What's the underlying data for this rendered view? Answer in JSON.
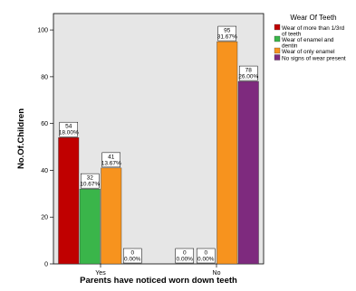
{
  "chart_data": {
    "type": "bar",
    "xlabel": "Parents have noticed worn down teeth",
    "ylabel": "No.Of.Children",
    "ylim": [
      0,
      100
    ],
    "yticks": [
      0,
      20,
      40,
      60,
      80,
      100
    ],
    "categories": [
      "Yes",
      "No"
    ],
    "grid": false,
    "legend_position": "right",
    "legend_title": "Wear Of Teeth",
    "series": [
      {
        "name": "Wear of more than 1/3rd of teeth",
        "color": "#c00000",
        "values": [
          54,
          0
        ],
        "labels": [
          "18.00%",
          "0.00%"
        ]
      },
      {
        "name": "Wear of enamel and dentin",
        "color": "#3ab54a",
        "values": [
          32,
          0
        ],
        "labels": [
          "10.67%",
          "0.00%"
        ]
      },
      {
        "name": "Wear of only enamel",
        "color": "#f7931e",
        "values": [
          41,
          95
        ],
        "labels": [
          "13.67%",
          "31.67%"
        ]
      },
      {
        "name": "No signs of wear present",
        "color": "#7e2a7e",
        "values": [
          0,
          78
        ],
        "labels": [
          "0.00%",
          "26.00%"
        ]
      }
    ],
    "plot_background": "#e6e6e6"
  }
}
